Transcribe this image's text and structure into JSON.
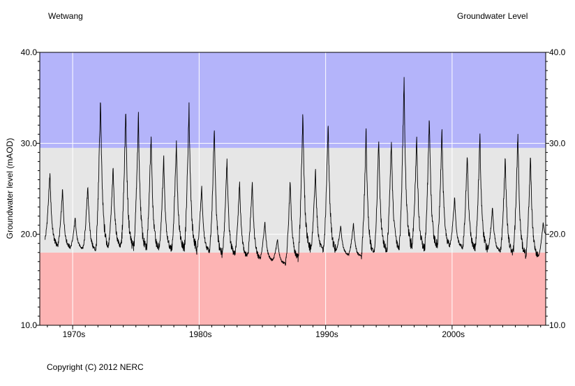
{
  "header": {
    "station": "Wetwang",
    "title": "Groundwater Level"
  },
  "footer": {
    "copyright": "Copyright (C) 2012 NERC"
  },
  "colors": {
    "high_band": "#b4b4fa",
    "normal_band": "#e6e6e6",
    "low_band": "#fdb4b4",
    "series_line": "#000000"
  },
  "chart_data": {
    "type": "line",
    "title": "Groundwater Level",
    "ylabel": "Groundwater level (mAOD)",
    "xlabel": "",
    "ylim": [
      10.0,
      40.0
    ],
    "yticks": [
      "10.0",
      "20.0",
      "30.0",
      "40.0"
    ],
    "xlim": [
      1967.4,
      2007.4
    ],
    "xticks": [
      {
        "label": "1970s",
        "at": 1970
      },
      {
        "label": "1980s",
        "at": 1980
      },
      {
        "label": "1990s",
        "at": 1990
      },
      {
        "label": "2000s",
        "at": 2000
      }
    ],
    "grid": true,
    "bands": {
      "high_floor": 29.5,
      "normal_floor": 18.0
    },
    "series": [
      {
        "annual_peak_year": [
          1968.2,
          1969.2,
          1970.2,
          1971.2,
          1972.2,
          1973.2,
          1974.2,
          1975.2,
          1976.2,
          1977.2,
          1978.2,
          1979.2,
          1980.2,
          1981.2,
          1982.2,
          1983.2,
          1984.2,
          1985.2,
          1986.2,
          1987.2,
          1988.2,
          1989.2,
          1990.2,
          1991.2,
          1992.2,
          1993.2,
          1994.2,
          1995.2,
          1996.2,
          1997.2,
          1998.2,
          1999.2,
          2000.2,
          2001.2,
          2002.2,
          2003.2,
          2004.2,
          2005.2,
          2006.2,
          2007.2
        ],
        "annual_peak": [
          26.8,
          25.0,
          21.8,
          25.5,
          35.2,
          27.4,
          34.0,
          33.2,
          31.0,
          28.6,
          30.5,
          34.4,
          25.3,
          32.0,
          28.4,
          25.8,
          26.1,
          21.5,
          19.5,
          26.0,
          33.6,
          27.2,
          32.5,
          21.0,
          21.2,
          31.5,
          30.6,
          30.5,
          37.3,
          30.8,
          33.2,
          31.5,
          24.2,
          28.9,
          31.0,
          23.0,
          28.6,
          31.2,
          28.7,
          21.3
        ],
        "annual_low": [
          18.8,
          18.6,
          18.5,
          18.3,
          18.8,
          18.7,
          18.6,
          18.5,
          18.5,
          18.4,
          18.5,
          18.4,
          18.2,
          17.9,
          17.8,
          17.6,
          17.4,
          17.2,
          16.8,
          17.5,
          18.4,
          18.2,
          18.3,
          17.8,
          17.6,
          17.9,
          18.3,
          18.6,
          18.8,
          18.5,
          18.8,
          18.8,
          18.6,
          18.5,
          18.4,
          18.2,
          18.0,
          17.8,
          17.6,
          19.5
        ]
      }
    ]
  }
}
